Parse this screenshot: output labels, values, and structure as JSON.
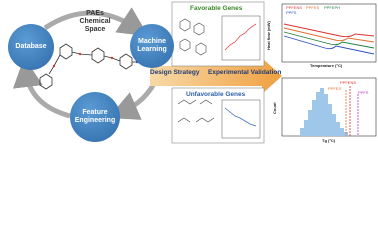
{
  "left": {
    "center_title": "PAEs Chemical Space",
    "nodes": [
      {
        "label": "Database"
      },
      {
        "label": "Machine Learning"
      },
      {
        "label": "Feature Engineering"
      }
    ]
  },
  "arrow": {
    "labels": [
      "Design Strategy",
      "Experimental Validation"
    ]
  },
  "favorable": {
    "title": "Favorable Genes"
  },
  "unfavorable": {
    "title": "Unfavorable Genes"
  },
  "dsc": {
    "legend": [
      "PPFENS",
      "PPFES",
      "PPFEPH",
      "PPFS"
    ],
    "x_label": "Temperature (°C)",
    "y_label": "Heat flow (mW)"
  },
  "histogram": {
    "legend": [
      "PPFENS",
      "PPFES",
      "PPFS"
    ],
    "x_label": "Tg (°C)",
    "y_label": "Count"
  }
}
